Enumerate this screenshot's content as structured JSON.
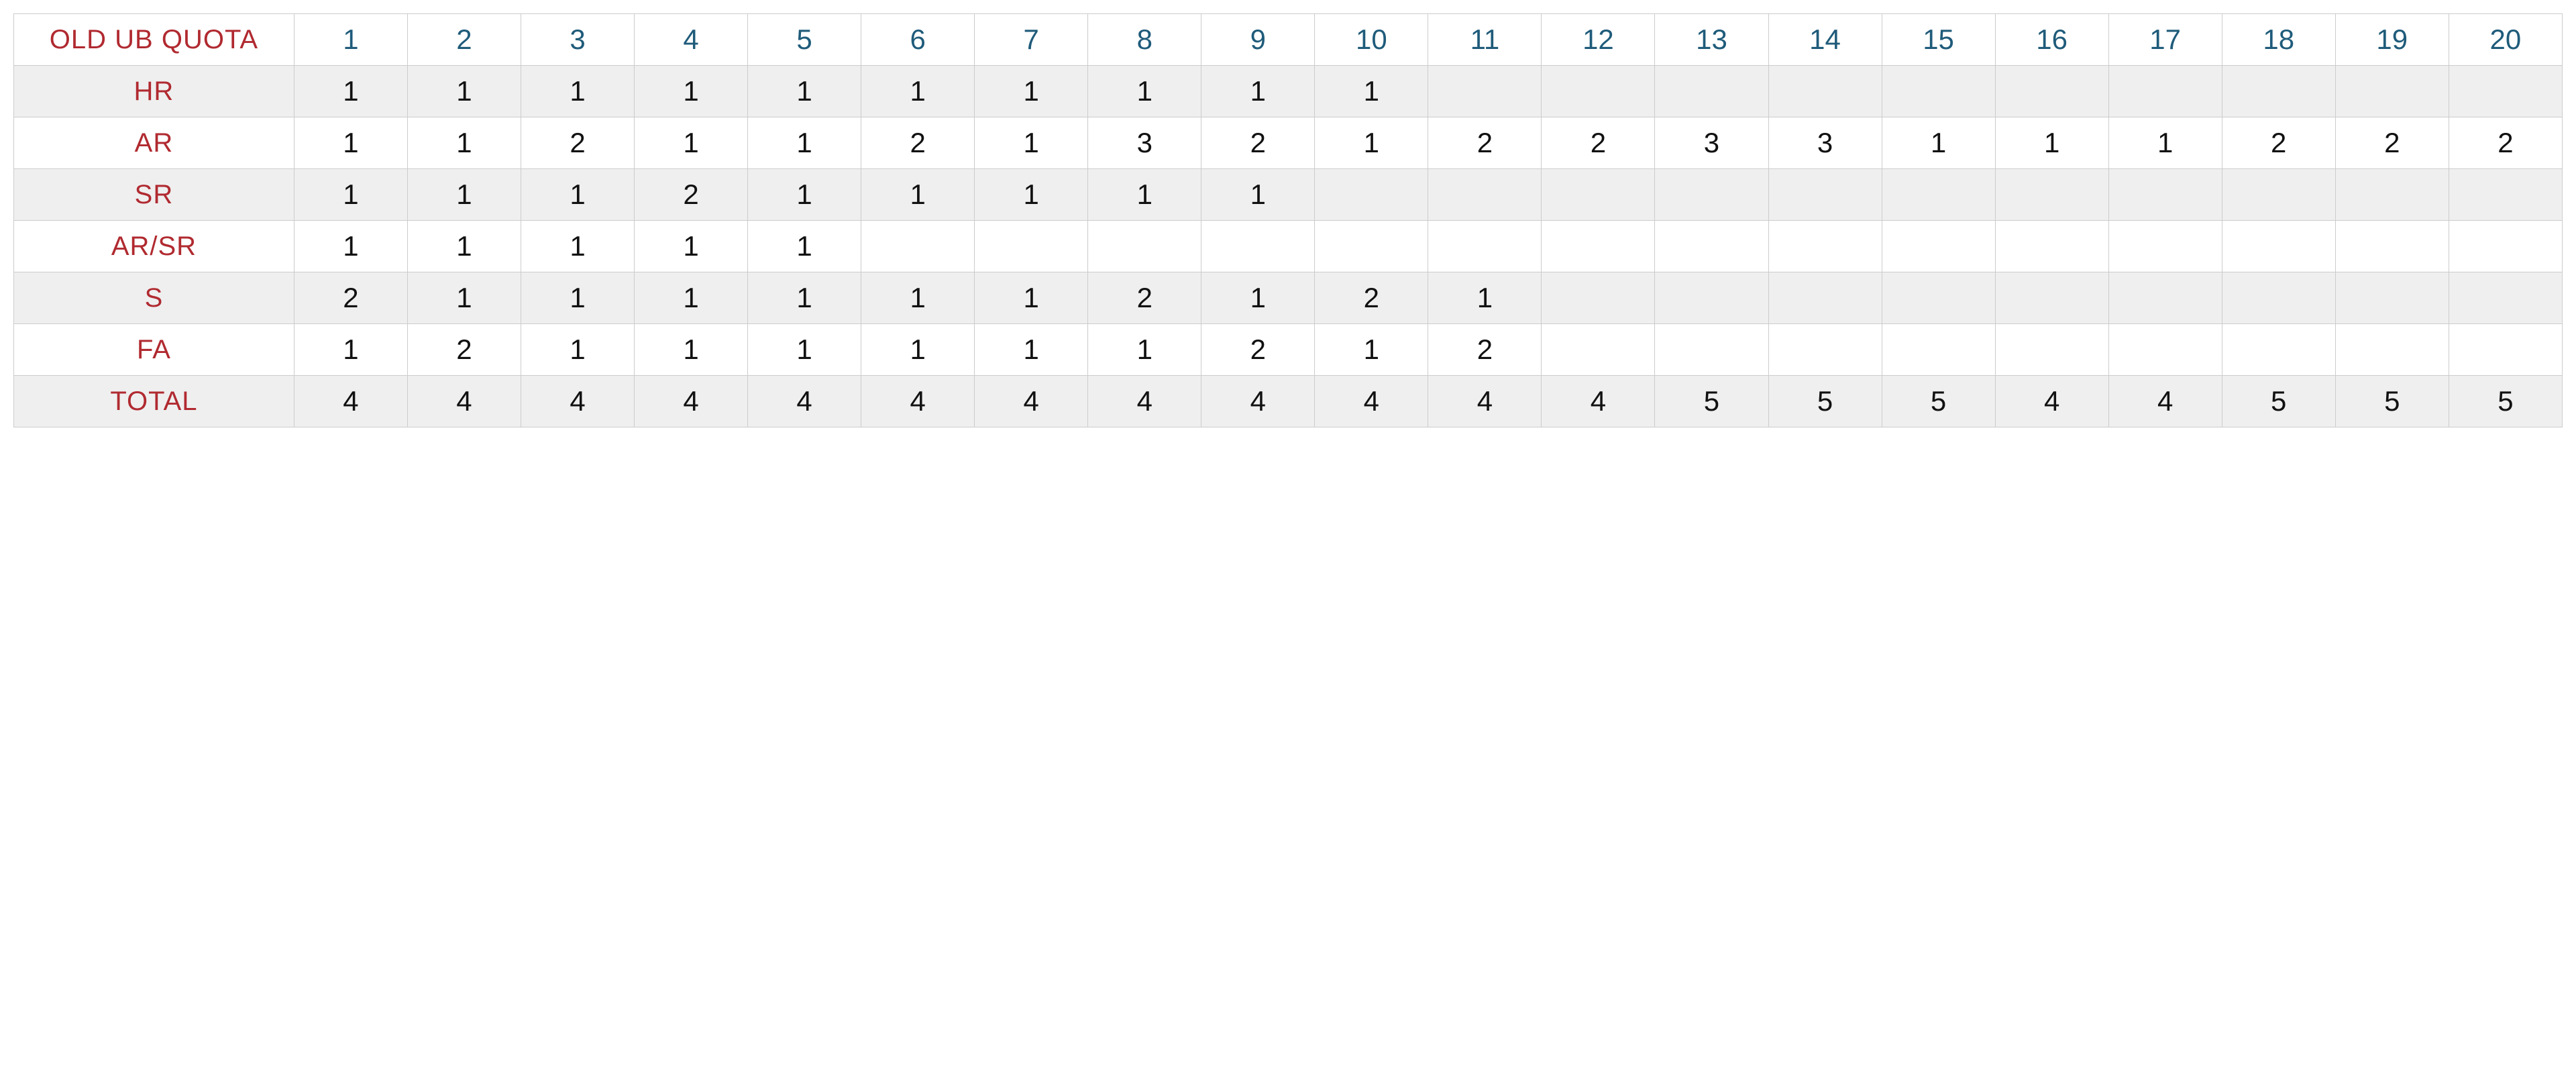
{
  "table": {
    "type": "table",
    "corner_label": "OLD UB QUOTA",
    "columns": [
      "1",
      "2",
      "3",
      "4",
      "5",
      "6",
      "7",
      "8",
      "9",
      "10",
      "11",
      "12",
      "13",
      "14",
      "15",
      "16",
      "17",
      "18",
      "19",
      "20"
    ],
    "rows": [
      {
        "label": "HR",
        "cells": [
          "1",
          "1",
          "1",
          "1",
          "1",
          "1",
          "1",
          "1",
          "1",
          "1",
          "",
          "",
          "",
          "",
          "",
          "",
          "",
          "",
          "",
          ""
        ]
      },
      {
        "label": "AR",
        "cells": [
          "1",
          "1",
          "2",
          "1",
          "1",
          "2",
          "1",
          "3",
          "2",
          "1",
          "2",
          "2",
          "3",
          "3",
          "1",
          "1",
          "1",
          "2",
          "2",
          "2"
        ]
      },
      {
        "label": "SR",
        "cells": [
          "1",
          "1",
          "1",
          "2",
          "1",
          "1",
          "1",
          "1",
          "1",
          "",
          "",
          "",
          "",
          "",
          "",
          "",
          "",
          "",
          "",
          ""
        ]
      },
      {
        "label": "AR/SR",
        "cells": [
          "1",
          "1",
          "1",
          "1",
          "1",
          "",
          "",
          "",
          "",
          "",
          "",
          "",
          "",
          "",
          "",
          "",
          "",
          "",
          "",
          ""
        ]
      },
      {
        "label": "S",
        "cells": [
          "2",
          "1",
          "1",
          "1",
          "1",
          "1",
          "1",
          "2",
          "1",
          "2",
          "1",
          "",
          "",
          "",
          "",
          "",
          "",
          "",
          "",
          ""
        ]
      },
      {
        "label": "FA",
        "cells": [
          "1",
          "2",
          "1",
          "1",
          "1",
          "1",
          "1",
          "1",
          "2",
          "1",
          "2",
          "",
          "",
          "",
          "",
          "",
          "",
          "",
          "",
          ""
        ]
      },
      {
        "label": "TOTAL",
        "cells": [
          "4",
          "4",
          "4",
          "4",
          "4",
          "4",
          "4",
          "4",
          "4",
          "4",
          "4",
          "4",
          "5",
          "5",
          "5",
          "4",
          "4",
          "5",
          "5",
          "5"
        ]
      }
    ],
    "style": {
      "row_label_color": "#b02a30",
      "column_header_color": "#1f5b7a",
      "data_text_color": "#111111",
      "border_color": "#cccccc",
      "shaded_row_bg": "#efefef",
      "plain_row_bg": "#ffffff",
      "header_fontsize": 42,
      "label_fontsize": 40,
      "data_fontsize": 42,
      "font_weight": 300,
      "row_shading": [
        "plain",
        "shaded",
        "plain",
        "shaded",
        "plain",
        "shaded",
        "plain",
        "shaded"
      ]
    }
  }
}
